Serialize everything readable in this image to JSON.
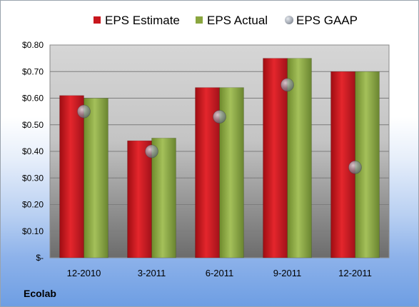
{
  "company": "Ecolab",
  "chart_data": {
    "type": "bar",
    "categories": [
      "12-2010",
      "3-2011",
      "6-2011",
      "9-2011",
      "12-2011"
    ],
    "series": [
      {
        "name": "EPS Estimate",
        "kind": "bar",
        "color": "#c8161d",
        "values": [
          0.61,
          0.44,
          0.64,
          0.75,
          0.7
        ]
      },
      {
        "name": "EPS Actual",
        "kind": "bar",
        "color": "#8aa63f",
        "values": [
          0.6,
          0.45,
          0.64,
          0.75,
          0.7
        ]
      },
      {
        "name": "EPS GAAP",
        "kind": "point",
        "color": "#9aa3b0",
        "values": [
          0.55,
          0.4,
          0.53,
          0.65,
          0.34
        ]
      }
    ],
    "y_ticks": [
      {
        "value": 0.0,
        "label": "$-"
      },
      {
        "value": 0.1,
        "label": "$0.10"
      },
      {
        "value": 0.2,
        "label": "$0.20"
      },
      {
        "value": 0.3,
        "label": "$0.30"
      },
      {
        "value": 0.4,
        "label": "$0.40"
      },
      {
        "value": 0.5,
        "label": "$0.50"
      },
      {
        "value": 0.6,
        "label": "$0.60"
      },
      {
        "value": 0.7,
        "label": "$0.70"
      },
      {
        "value": 0.8,
        "label": "$0.80"
      }
    ],
    "ylim": [
      0,
      0.8
    ],
    "grid": true,
    "legend_position": "top"
  }
}
